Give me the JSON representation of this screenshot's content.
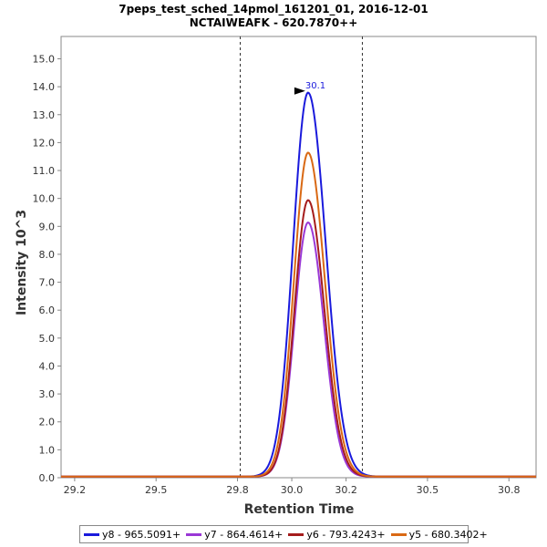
{
  "chart_data": {
    "type": "line",
    "title": "7peps_test_sched_14pmol_161201_01, 2016-12-01",
    "subtitle": "NCTAIWEAFK - 620.7870++",
    "xlabel": "Retention Time",
    "ylabel": "Intensity 10^3",
    "xlim": [
      29.15,
      30.9
    ],
    "ylim": [
      0,
      15.8
    ],
    "x_ticks": [
      "29.2",
      "29.5",
      "29.8",
      "30.0",
      "30.2",
      "30.5",
      "30.8"
    ],
    "x_tick_values": [
      29.2,
      29.5,
      29.8,
      30.0,
      30.2,
      30.5,
      30.8
    ],
    "y_ticks": [
      "0.0",
      "1.0",
      "2.0",
      "3.0",
      "4.0",
      "5.0",
      "6.0",
      "7.0",
      "8.0",
      "9.0",
      "10.0",
      "11.0",
      "12.0",
      "13.0",
      "14.0",
      "15.0"
    ],
    "y_tick_values": [
      0,
      1,
      2,
      3,
      4,
      5,
      6,
      7,
      8,
      9,
      10,
      11,
      12,
      13,
      14,
      15
    ],
    "vlines": [
      29.81,
      30.26
    ],
    "peak_label": {
      "text": "30.1",
      "x": 30.06,
      "y": 13.75
    },
    "peak_rt": 30.06,
    "series": [
      {
        "name": "y8 - 965.5091+",
        "color": "#1a1adc",
        "height": 13.75,
        "sigma_left": 0.055,
        "sigma_right": 0.065
      },
      {
        "name": "y7 - 864.4614+",
        "color": "#9a38d6",
        "height": 9.1,
        "sigma_left": 0.05,
        "sigma_right": 0.058
      },
      {
        "name": "y6 - 793.4243+",
        "color": "#a51c1c",
        "height": 9.9,
        "sigma_left": 0.05,
        "sigma_right": 0.06
      },
      {
        "name": "y5 - 680.3402+",
        "color": "#d96914",
        "height": 11.6,
        "sigma_left": 0.052,
        "sigma_right": 0.062
      }
    ]
  }
}
